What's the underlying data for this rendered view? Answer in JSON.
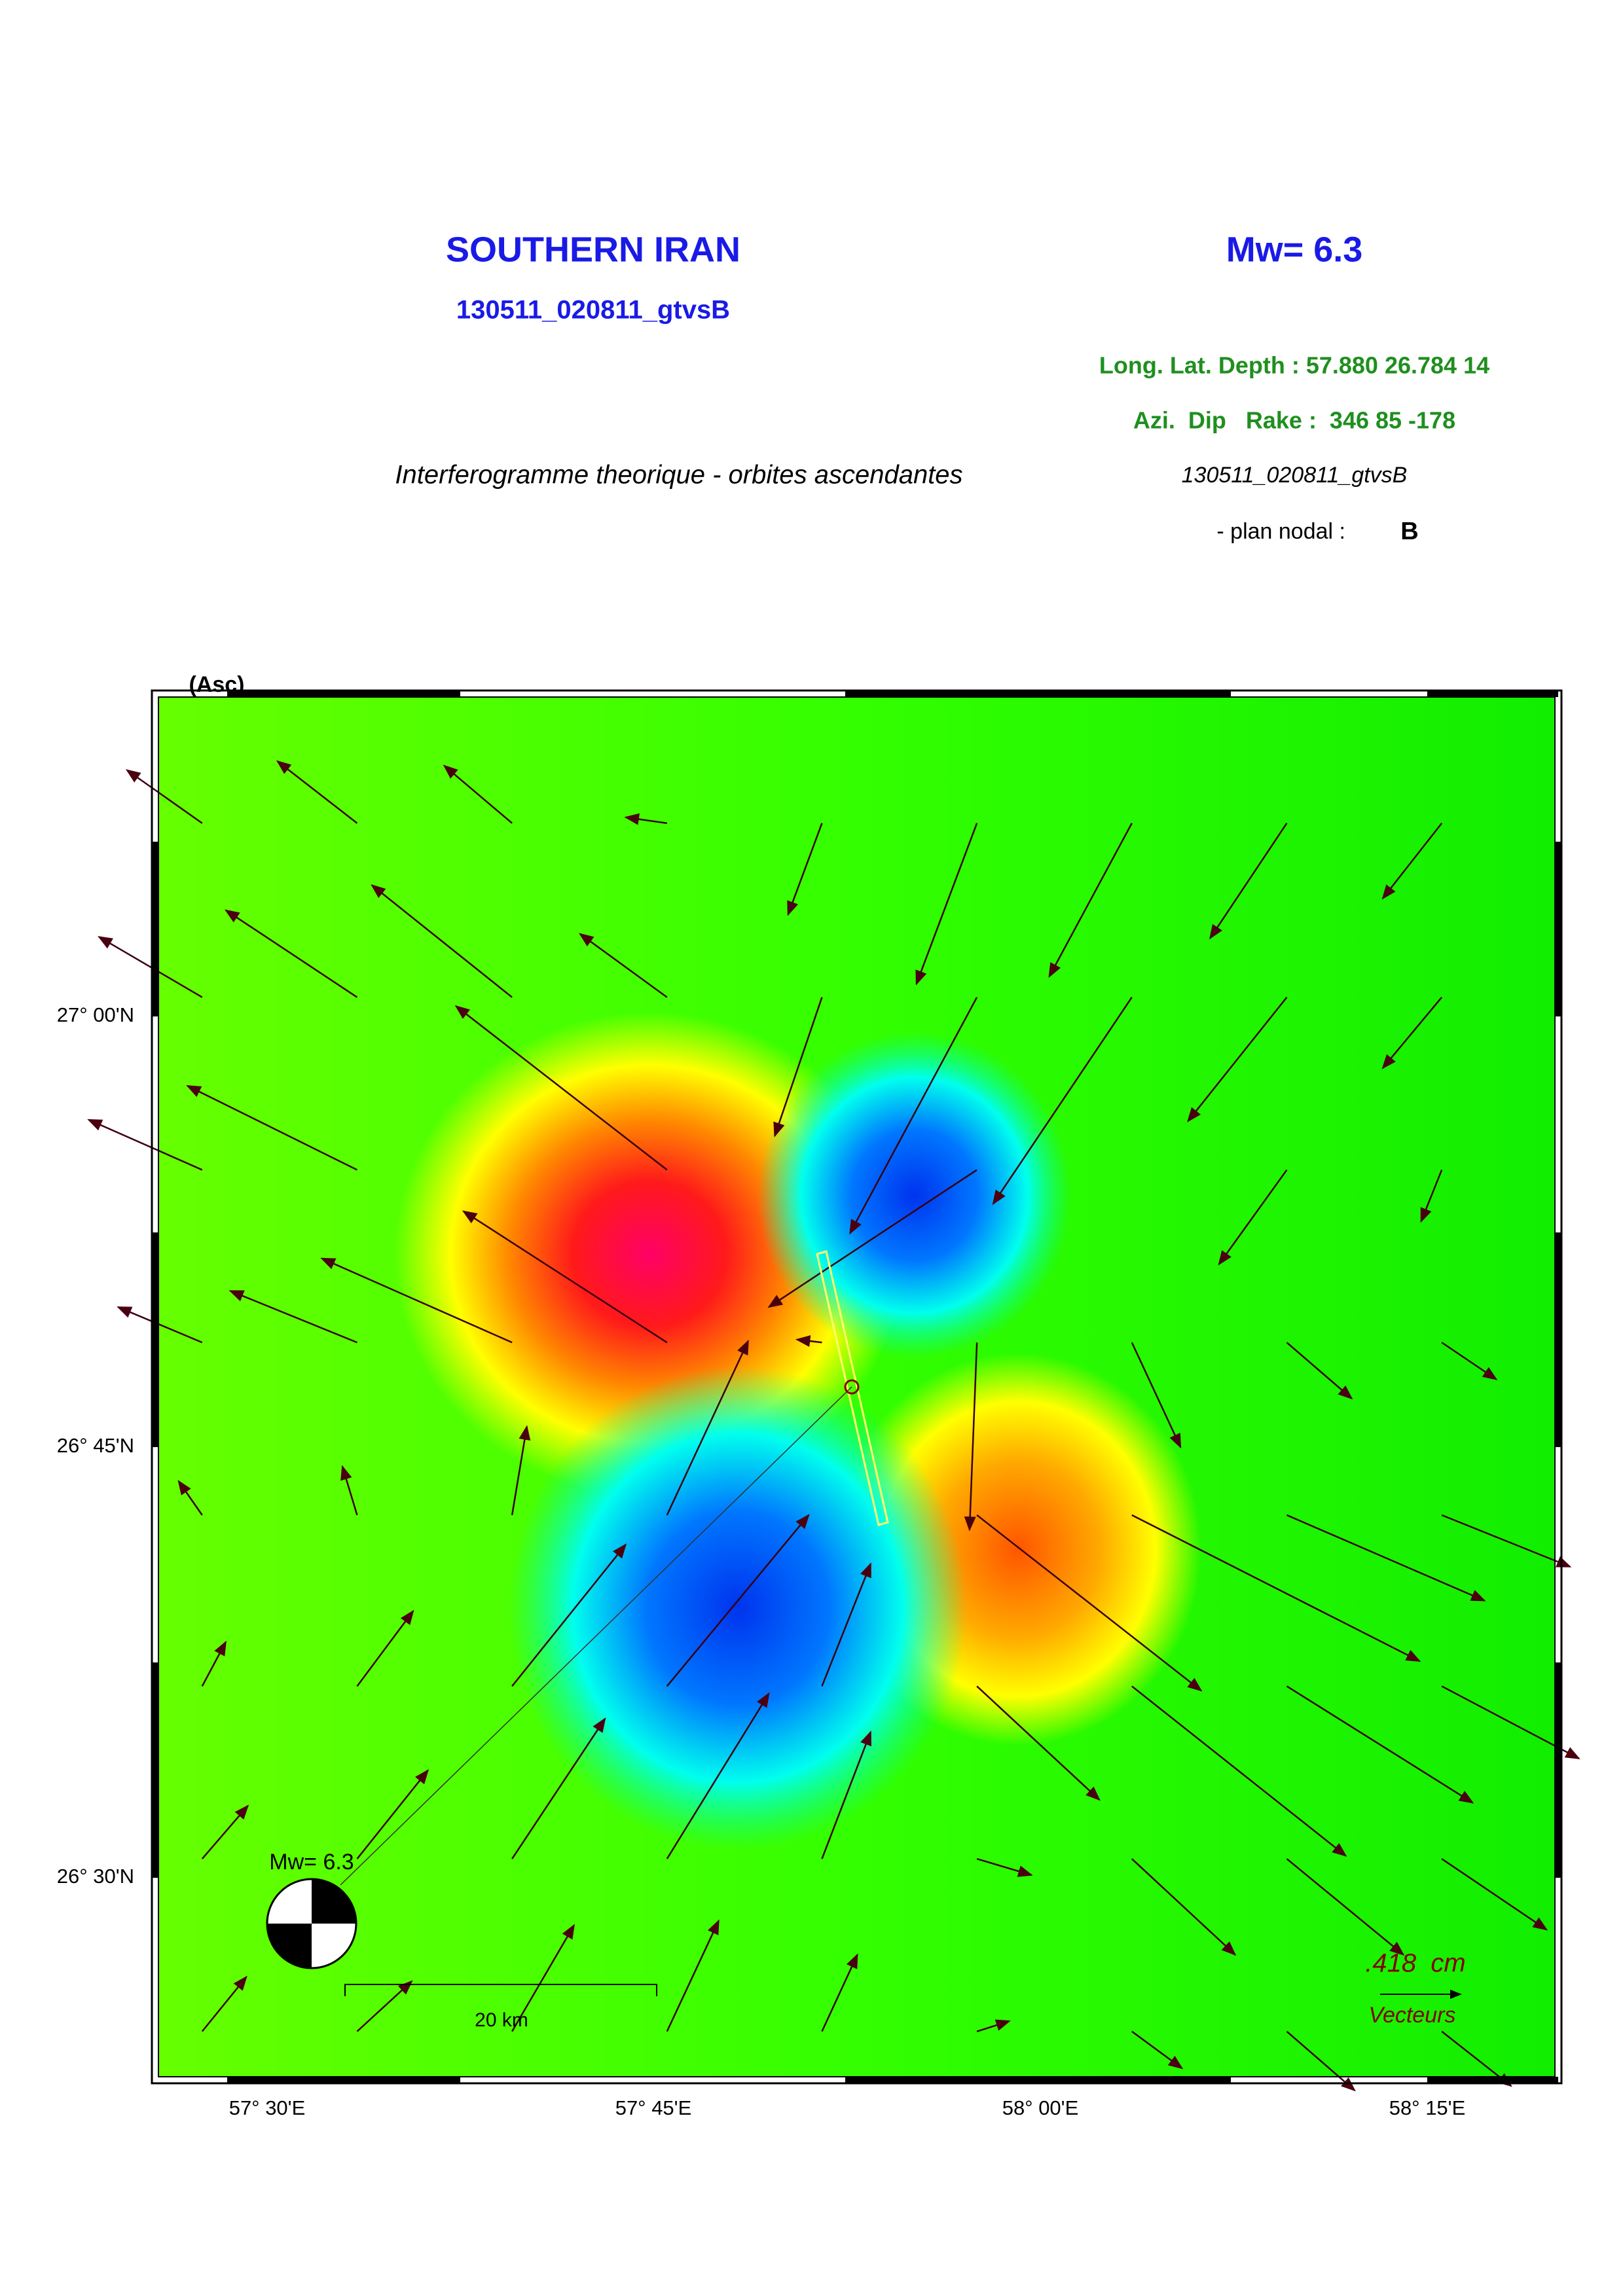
{
  "header": {
    "title": "SOUTHERN IRAN",
    "event_id": "130511_020811_gtvsB",
    "magnitude": "Mw= 6.3",
    "location": "Long. Lat. Depth : 57.880 26.784 14",
    "mechanism": "Azi.  Dip   Rake :  346 85 -178",
    "subtitle": "Interferogramme theorique - orbites ascendantes",
    "solution": "130511_020811_gtvsB",
    "nodal_plane_label": "- plan nodal :",
    "nodal_plane": "B"
  },
  "map": {
    "orbit": "(Asc)",
    "lat_labels": [
      "27° 00'N",
      "26° 45'N",
      "26° 30'N"
    ],
    "lon_labels": [
      "57° 30'E",
      "57° 45'E",
      "58° 00'E",
      "58° 15'E"
    ],
    "scale_bar": "20 km",
    "beachball_label": "Mw= 6.3",
    "vector_scale": ".418  cm",
    "vector_label": "Vecteurs"
  }
}
